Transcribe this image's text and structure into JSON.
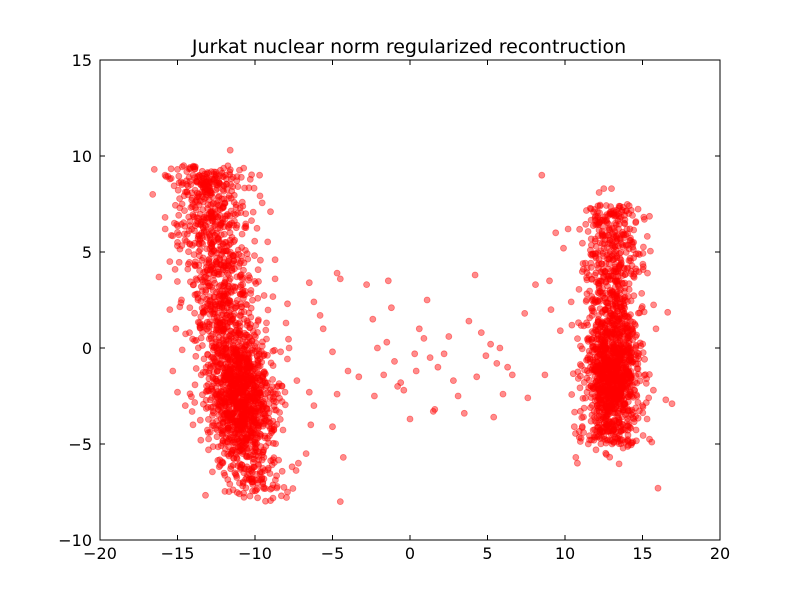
{
  "chart_data": {
    "type": "scatter",
    "title": "Jurkat nuclear norm regularized recontruction",
    "xlabel": "",
    "ylabel": "",
    "xlim": [
      -20,
      20
    ],
    "ylim": [
      -10,
      15
    ],
    "x_ticks": [
      -20,
      -15,
      -10,
      -5,
      0,
      5,
      10,
      15,
      20
    ],
    "y_ticks": [
      -10,
      -5,
      0,
      5,
      10,
      15
    ],
    "x_tick_labels": [
      "−20",
      "−15",
      "−10",
      "−5",
      "0",
      "5",
      "10",
      "15",
      "20"
    ],
    "y_tick_labels": [
      "−10",
      "−5",
      "0",
      "5",
      "10",
      "15"
    ],
    "grid": false,
    "legend": "none",
    "marker_color": "#ff0000",
    "marker_alpha": 0.45,
    "series": [
      {
        "values_note": "",
        "points": [
          [
            -16.5,
            9.3
          ],
          [
            -16.6,
            8.0
          ],
          [
            -15.8,
            9.0
          ],
          [
            -15.5,
            8.8
          ],
          [
            -15.0,
            9.3
          ],
          [
            -14.6,
            9.5
          ],
          [
            -14.2,
            9.4
          ],
          [
            -14.0,
            9.0
          ],
          [
            -13.8,
            8.7
          ],
          [
            -13.5,
            8.5
          ],
          [
            -13.0,
            8.4
          ],
          [
            -11.6,
            10.3
          ],
          [
            -9.7,
            9.0
          ],
          [
            -9.0,
            7.1
          ],
          [
            -15.8,
            6.8
          ],
          [
            -15.2,
            6.5
          ],
          [
            -15.0,
            5.5
          ],
          [
            -15.5,
            4.5
          ],
          [
            -16.2,
            3.7
          ],
          [
            -15.5,
            2.0
          ],
          [
            -15.1,
            1.0
          ],
          [
            -14.7,
            -0.1
          ],
          [
            -15.3,
            -1.2
          ],
          [
            -15.0,
            -2.3
          ],
          [
            -14.5,
            -3.0
          ],
          [
            -14.0,
            -4.0
          ],
          [
            -13.5,
            -4.8
          ],
          [
            -13.0,
            -5.3
          ],
          [
            -12.1,
            -6.0
          ],
          [
            -11.3,
            -6.5
          ],
          [
            -10.2,
            -6.8
          ],
          [
            -9.5,
            -7.0
          ],
          [
            -8.9,
            -7.3
          ],
          [
            -8.3,
            -7.7
          ],
          [
            -7.9,
            -7.5
          ],
          [
            -7.2,
            -6.0
          ],
          [
            -6.7,
            -5.5
          ],
          [
            -6.4,
            -4.0
          ],
          [
            -6.2,
            -3.0
          ],
          [
            -6.5,
            -2.3
          ],
          [
            -7.3,
            -1.7
          ],
          [
            -7.8,
            0.0
          ],
          [
            -8.0,
            1.3
          ],
          [
            -7.9,
            2.3
          ],
          [
            -8.7,
            3.6
          ],
          [
            -8.7,
            4.6
          ],
          [
            -6.5,
            3.4
          ],
          [
            -6.2,
            2.4
          ],
          [
            -5.8,
            1.7
          ],
          [
            -5.6,
            1.0
          ],
          [
            -5.0,
            -0.2
          ],
          [
            -4.7,
            3.9
          ],
          [
            -4.5,
            3.6
          ],
          [
            -4.3,
            -5.7
          ],
          [
            -4.5,
            -8.0
          ],
          [
            -5.0,
            -4.1
          ],
          [
            -4.7,
            -2.4
          ],
          [
            -4.0,
            -1.2
          ],
          [
            -3.3,
            -1.5
          ],
          [
            -2.8,
            3.3
          ],
          [
            -2.4,
            1.5
          ],
          [
            -2.1,
            0.0
          ],
          [
            -2.3,
            -2.5
          ],
          [
            -1.7,
            -1.4
          ],
          [
            -1.5,
            0.3
          ],
          [
            -1.4,
            3.5
          ],
          [
            -1.2,
            2.1
          ],
          [
            -1.0,
            -0.7
          ],
          [
            -0.8,
            -2.0
          ],
          [
            -0.6,
            -1.8
          ],
          [
            -0.4,
            -2.2
          ],
          [
            0.0,
            -3.7
          ],
          [
            0.3,
            -0.3
          ],
          [
            0.4,
            -1.2
          ],
          [
            0.6,
            1.0
          ],
          [
            0.9,
            0.5
          ],
          [
            1.1,
            2.5
          ],
          [
            1.3,
            -0.5
          ],
          [
            1.5,
            -3.3
          ],
          [
            1.6,
            -3.2
          ],
          [
            1.8,
            -1.0
          ],
          [
            2.2,
            -0.3
          ],
          [
            2.5,
            0.6
          ],
          [
            2.8,
            -1.7
          ],
          [
            3.1,
            -2.5
          ],
          [
            3.5,
            -3.4
          ],
          [
            3.8,
            1.4
          ],
          [
            4.2,
            3.8
          ],
          [
            4.3,
            -1.5
          ],
          [
            4.6,
            0.8
          ],
          [
            4.9,
            -0.4
          ],
          [
            5.2,
            0.2
          ],
          [
            5.4,
            -3.6
          ],
          [
            5.6,
            -0.8
          ],
          [
            5.8,
            0.0
          ],
          [
            6.0,
            -2.4
          ],
          [
            6.3,
            -1.0
          ],
          [
            6.6,
            -1.4
          ],
          [
            7.4,
            1.8
          ],
          [
            7.6,
            -2.6
          ],
          [
            8.1,
            3.3
          ],
          [
            8.5,
            9.0
          ],
          [
            8.7,
            -1.4
          ],
          [
            9.0,
            3.5
          ],
          [
            9.1,
            2.0
          ],
          [
            9.4,
            6.0
          ],
          [
            9.7,
            0.9
          ],
          [
            9.9,
            5.2
          ],
          [
            10.2,
            6.2
          ],
          [
            10.4,
            2.4
          ],
          [
            10.6,
            -4.1
          ],
          [
            10.7,
            -5.7
          ],
          [
            10.8,
            -6.0
          ],
          [
            11.0,
            0.1
          ],
          [
            11.2,
            -4.4
          ],
          [
            11.5,
            -5.0
          ],
          [
            11.7,
            4.2
          ],
          [
            12.0,
            -5.3
          ],
          [
            12.2,
            8.1
          ],
          [
            12.5,
            8.3
          ],
          [
            13.0,
            8.3
          ],
          [
            13.5,
            7.3
          ],
          [
            14.0,
            6.2
          ],
          [
            14.6,
            4.0
          ],
          [
            15.0,
            -3.0
          ],
          [
            15.3,
            -3.7
          ],
          [
            15.6,
            -4.9
          ],
          [
            16.0,
            -7.3
          ],
          [
            16.5,
            -2.7
          ],
          [
            16.9,
            -2.9
          ],
          [
            15.7,
            -2.2
          ],
          [
            15.4,
            -2.6
          ]
        ]
      }
    ]
  }
}
